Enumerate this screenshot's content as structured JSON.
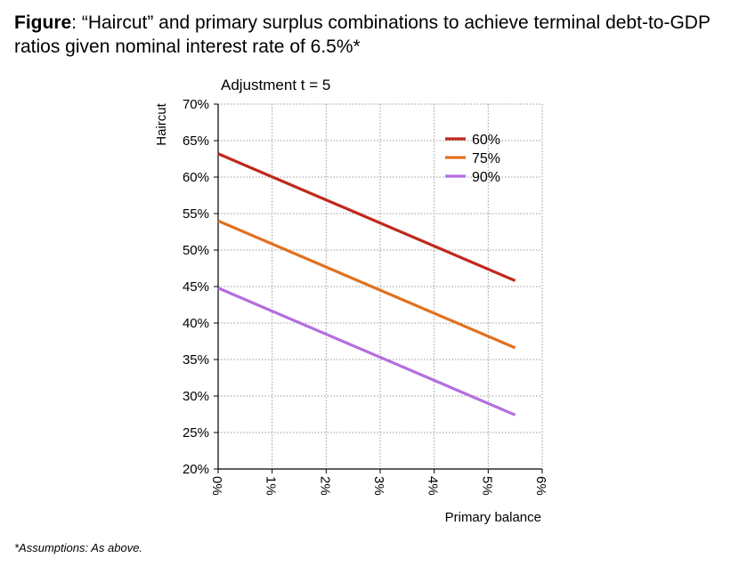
{
  "figure": {
    "label": "Figure",
    "caption": ": “Haircut” and primary surplus combinations to achieve terminal debt-to-GDP ratios given nominal interest rate of 6.5%*"
  },
  "footnote": "*Assumptions: As above.",
  "chart_data": {
    "type": "line",
    "title": "Adjustment t = 5",
    "xlabel": "Primary balance",
    "ylabel": "Haircut",
    "x_unit": "%",
    "y_unit": "%",
    "xlim": [
      0,
      6
    ],
    "ylim": [
      20,
      70
    ],
    "x_ticks": [
      "0%",
      "1%",
      "2%",
      "3%",
      "4%",
      "5%",
      "6%"
    ],
    "y_ticks": [
      "70%",
      "65%",
      "60%",
      "55%",
      "50%",
      "45%",
      "40%",
      "35%",
      "30%",
      "25%",
      "20%"
    ],
    "grid": true,
    "legend_position": "top-right",
    "series": [
      {
        "name": "60%",
        "color": "#c0281e",
        "x": [
          0,
          5.5
        ],
        "y": [
          63.2,
          45.8
        ]
      },
      {
        "name": "75%",
        "color": "#e0711e",
        "x": [
          0,
          5.5
        ],
        "y": [
          54.0,
          36.6
        ]
      },
      {
        "name": "90%",
        "color": "#b36ee0",
        "x": [
          0,
          5.5
        ],
        "y": [
          44.8,
          27.4
        ]
      }
    ]
  }
}
